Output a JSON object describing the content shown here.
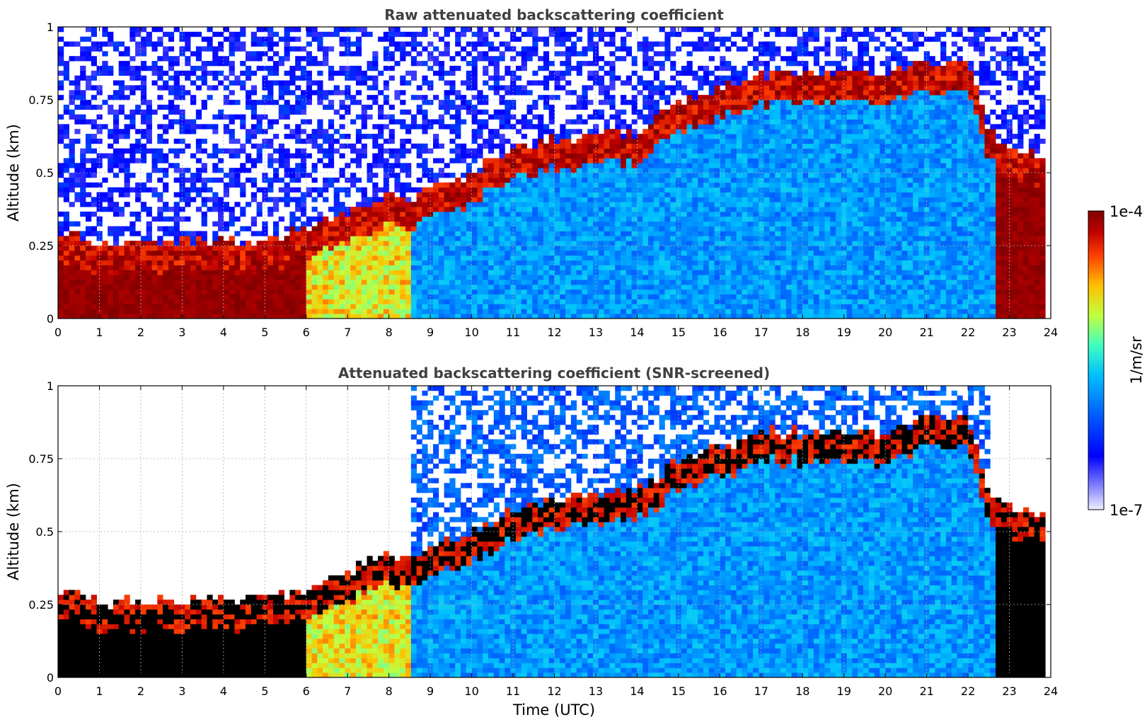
{
  "chart_data": [
    {
      "type": "heatmap",
      "title": "Raw attenuated backscattering coefficient",
      "xlabel": "",
      "ylabel": "Altitude (km)",
      "xlim": [
        0,
        24
      ],
      "ylim": [
        0,
        1
      ],
      "xticks": [
        "0",
        "1",
        "2",
        "3",
        "4",
        "5",
        "6",
        "7",
        "8",
        "9",
        "10",
        "11",
        "12",
        "13",
        "14",
        "15",
        "16",
        "17",
        "18",
        "19",
        "20",
        "21",
        "22",
        "23",
        "24"
      ],
      "yticks": [
        "0",
        "0.25",
        "0.5",
        "0.75",
        "1"
      ],
      "grid": true,
      "masked_low_snr": false,
      "boundary_layer_top_km": {
        "time_utc": [
          0,
          0.5,
          1,
          2,
          3,
          4,
          5,
          6,
          7,
          7.5,
          8,
          8.5,
          9,
          10,
          11,
          12,
          13,
          14,
          15,
          16,
          17,
          18,
          19,
          20,
          21,
          22,
          22.5,
          23,
          23.8
        ],
        "altitude_km": [
          0.25,
          0.25,
          0.22,
          0.22,
          0.23,
          0.23,
          0.23,
          0.26,
          0.32,
          0.36,
          0.4,
          0.36,
          0.4,
          0.45,
          0.55,
          0.57,
          0.6,
          0.6,
          0.7,
          0.75,
          0.8,
          0.8,
          0.8,
          0.8,
          0.85,
          0.85,
          0.6,
          0.55,
          0.52
        ]
      }
    },
    {
      "type": "heatmap",
      "title": "Attenuated backscattering coefficient (SNR-screened)",
      "xlabel": "Time (UTC)",
      "ylabel": "Altitude (km)",
      "xlim": [
        0,
        24
      ],
      "ylim": [
        0,
        1
      ],
      "xticks": [
        "0",
        "1",
        "2",
        "3",
        "4",
        "5",
        "6",
        "7",
        "8",
        "9",
        "10",
        "11",
        "12",
        "13",
        "14",
        "15",
        "16",
        "17",
        "18",
        "19",
        "20",
        "21",
        "22",
        "23",
        "24"
      ],
      "yticks": [
        "0",
        "0.25",
        "0.5",
        "0.75",
        "1"
      ],
      "grid": true,
      "masked_low_snr": true
    }
  ],
  "colorbar": {
    "label": "1/m/sr",
    "max_label": "1e-4",
    "min_label": "1e-7",
    "scale": "log",
    "range": [
      1e-07,
      0.0001
    ],
    "colormap": "jet",
    "colors": [
      "#f0f0ff",
      "#8080ff",
      "#0000ff",
      "#0060ff",
      "#00c0ff",
      "#40ffc0",
      "#c0ff40",
      "#ffc000",
      "#ff4000",
      "#c00000",
      "#800000"
    ]
  }
}
